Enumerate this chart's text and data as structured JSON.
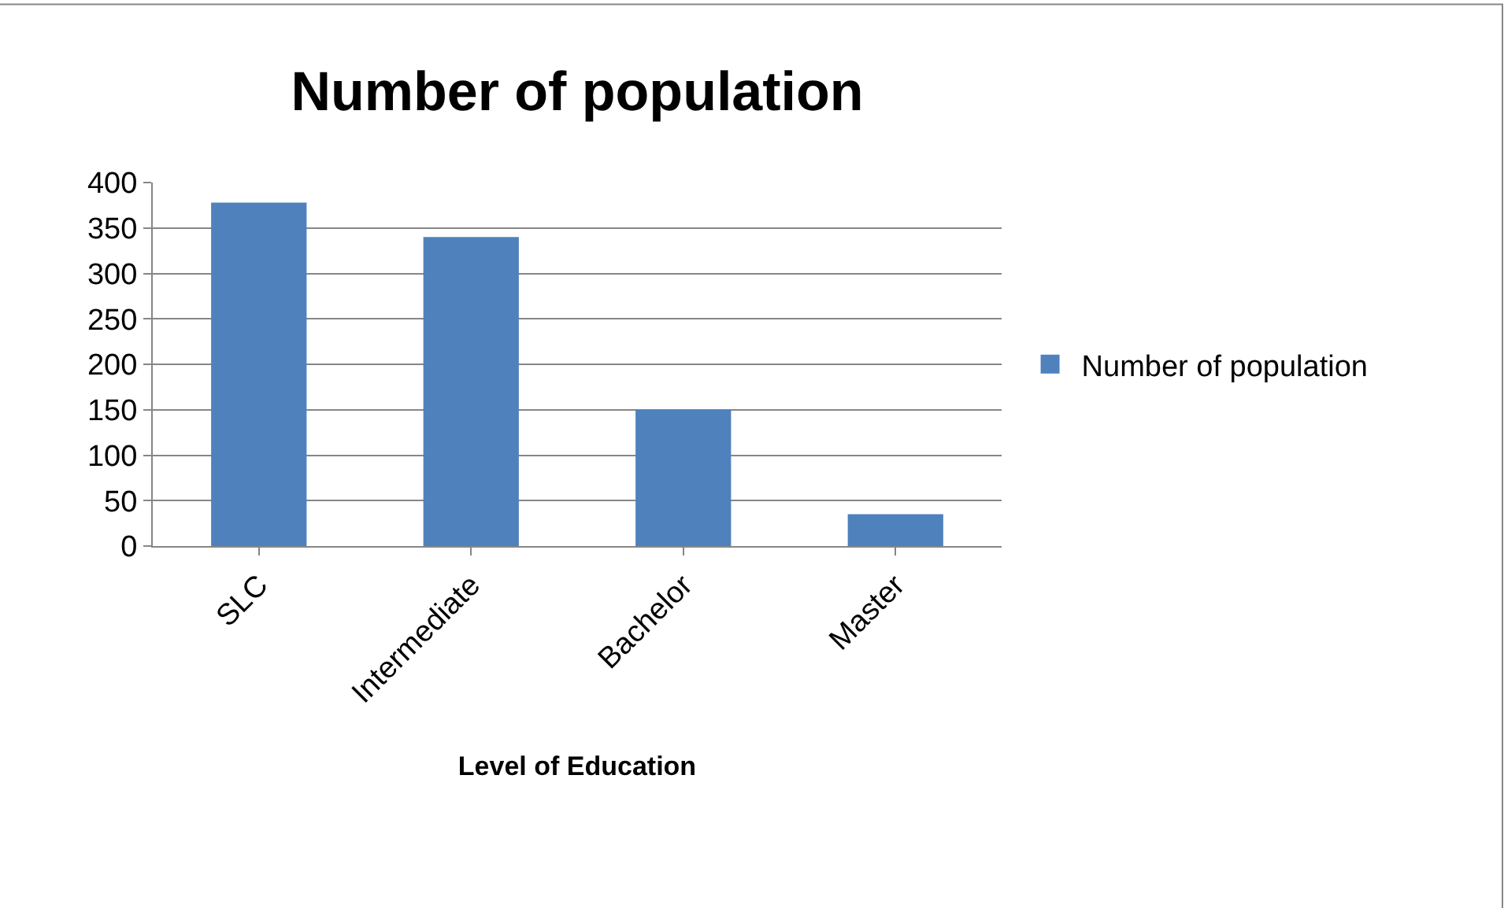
{
  "chart_data": {
    "type": "bar",
    "title": "Number of population",
    "xlabel": "Level of Education",
    "categories": [
      "SLC",
      "Intermediate",
      "Bachelor",
      "Master"
    ],
    "series": [
      {
        "name": "Number of population",
        "color": "#4f81bd",
        "values": [
          378,
          340,
          150,
          35
        ]
      }
    ],
    "ylim": [
      0,
      400
    ],
    "yticks": [
      0,
      50,
      100,
      150,
      200,
      250,
      300,
      350,
      400
    ],
    "grid": "y",
    "legend": "right"
  }
}
